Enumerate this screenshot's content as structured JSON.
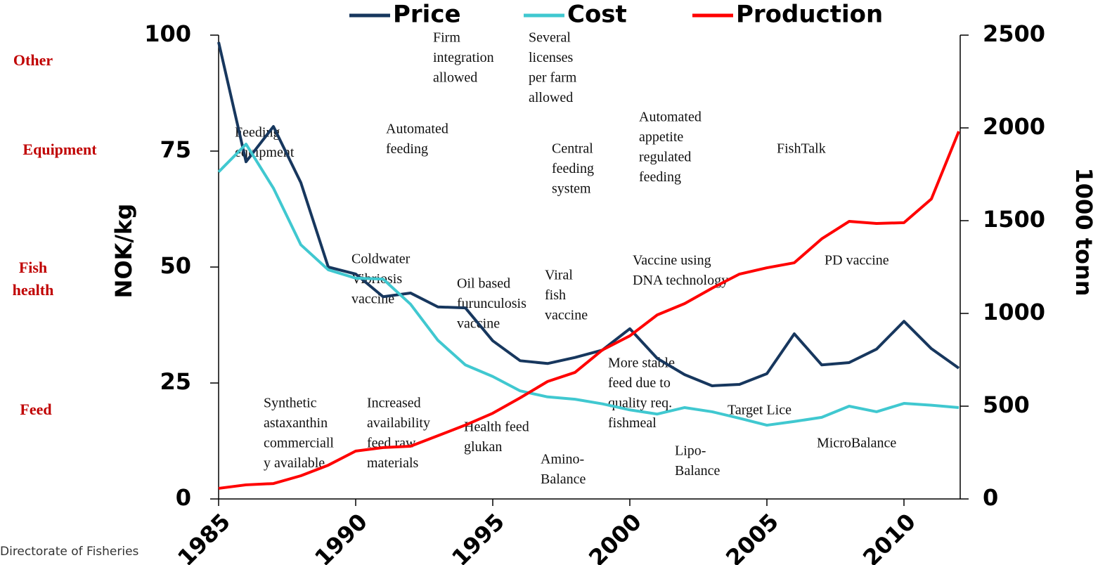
{
  "chart_data": {
    "type": "line",
    "x": [
      1985,
      1986,
      1987,
      1988,
      1989,
      1990,
      1991,
      1992,
      1993,
      1994,
      1995,
      1996,
      1997,
      1998,
      1999,
      2000,
      2001,
      2002,
      2003,
      2004,
      2005,
      2006,
      2007,
      2008,
      2009,
      2010,
      2011,
      2012
    ],
    "series": [
      {
        "name": "Price",
        "color": "#17375e",
        "values": [
          98.5,
          72.7,
          80.3,
          68.2,
          50,
          48.5,
          43.6,
          44.4,
          41.4,
          41.2,
          34.1,
          29.8,
          29.2,
          30.5,
          32.1,
          36.7,
          30.3,
          26.8,
          24.4,
          24.7,
          27,
          35.6,
          28.9,
          29.4,
          32.3,
          38.3,
          32.4,
          28.2
        ]
      },
      {
        "name": "Cost",
        "color": "#40c8d0",
        "values": [
          70.5,
          76.5,
          67,
          54.8,
          49.4,
          47.6,
          47.4,
          42,
          34.2,
          28.9,
          26.4,
          23.3,
          22,
          21.5,
          20.5,
          19.2,
          18.3,
          19.7,
          18.8,
          17.4,
          15.9,
          16.7,
          17.6,
          20,
          18.8,
          20.6,
          20.2,
          19.7
        ]
      },
      {
        "name": "Production",
        "color": "#ff0000",
        "axis": "y2",
        "values": [
          57,
          76,
          83,
          125,
          182,
          258,
          277,
          284,
          341,
          398,
          462,
          545,
          633,
          682,
          803,
          879,
          992,
          1053,
          1136,
          1212,
          1246,
          1273,
          1402,
          1496,
          1485,
          1489,
          1617,
          1981
        ]
      }
    ],
    "xlim": [
      1985,
      2012
    ],
    "xticks": [
      1985,
      1990,
      1995,
      2000,
      2005,
      2010
    ],
    "ylim": [
      0,
      100
    ],
    "yticks": [
      0,
      25,
      50,
      75,
      100
    ],
    "y2lim": [
      0,
      2500
    ],
    "y2ticks": [
      0,
      500,
      1000,
      1500,
      2000,
      2500
    ],
    "y_label": "NOK/kg",
    "y2_label": "1000 tonn",
    "row_labels": [
      [
        "Other"
      ],
      [
        "Equipment"
      ],
      [
        "Fish",
        "health"
      ],
      [
        "Feed"
      ]
    ],
    "annotations": [
      [
        "Firm",
        "integration",
        "allowed"
      ],
      [
        "Several",
        "licenses",
        "per farm",
        "allowed"
      ],
      [
        "Feeding",
        "equipment"
      ],
      [
        "Automated",
        "feeding"
      ],
      [
        "Central",
        "feeding",
        "system"
      ],
      [
        "Automated",
        "appetite",
        "regulated",
        "feeding"
      ],
      [
        "FishTalk"
      ],
      [
        "Coldwater",
        "Vibriosis",
        "vaccine"
      ],
      [
        "Oil based",
        "furunculosis",
        "vaccine"
      ],
      [
        "Viral",
        "fish",
        "vaccine"
      ],
      [
        "Vaccine using",
        "DNA technology"
      ],
      [
        "PD vaccine"
      ],
      [
        "More stable",
        "feed due to",
        "quality req.",
        "fishmeal"
      ],
      [
        "Synthetic",
        "astaxanthin",
        "commerciall",
        "y available"
      ],
      [
        "Increased",
        "availability",
        "feed raw",
        "materials"
      ],
      [
        "Health feed",
        "glukan"
      ],
      [
        "Amino-",
        "Balance"
      ],
      [
        "Lipo-",
        "Balance"
      ],
      [
        "Target Lice"
      ],
      [
        "MicroBalance"
      ]
    ],
    "source": "Directorate of Fisheries"
  }
}
